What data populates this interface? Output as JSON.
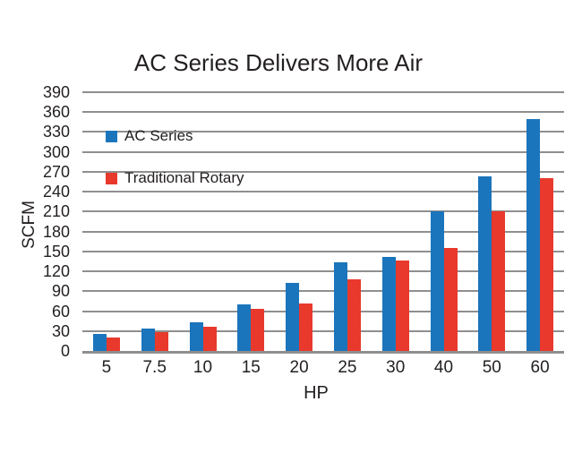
{
  "page": {
    "background_color": "#ffffff",
    "text_color": "#231f20"
  },
  "chart_data": {
    "type": "bar",
    "title": "AC Series Delivers More Air",
    "xlabel": "HP",
    "ylabel": "SCFM",
    "categories": [
      "5",
      "7.5",
      "10",
      "15",
      "20",
      "25",
      "30",
      "40",
      "50",
      "60"
    ],
    "series": [
      {
        "name": "AC Series",
        "color": "#1b75bc",
        "values": [
          25,
          34,
          43,
          70,
          103,
          134,
          142,
          210,
          263,
          350
        ]
      },
      {
        "name": "Traditional Rotary",
        "color": "#e8392c",
        "values": [
          20,
          28,
          36,
          64,
          71,
          108,
          136,
          155,
          210,
          261
        ]
      }
    ],
    "ylim": [
      0,
      390
    ],
    "ytick_step": 30,
    "yticks": [
      0,
      30,
      60,
      90,
      120,
      150,
      180,
      210,
      240,
      270,
      300,
      330,
      360,
      390
    ],
    "grid": true,
    "gridline_color": "#8f8f8f",
    "axisline_color": "#8f8f8f",
    "legend_position": "top-left-inside"
  }
}
